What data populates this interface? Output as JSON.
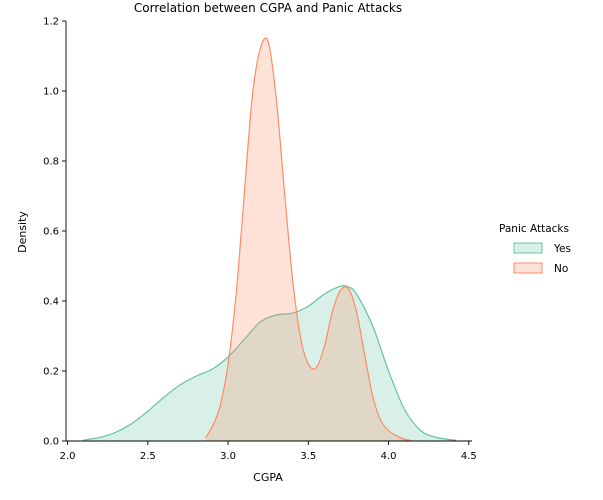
{
  "chart_data": {
    "type": "area",
    "title": "Correlation between CGPA and Panic Attacks",
    "xlabel": "CGPA",
    "ylabel": "Density",
    "xlim": [
      1.99,
      4.52
    ],
    "ylim": [
      0.0,
      1.2
    ],
    "xticks": [
      "2.0",
      "2.5",
      "3.0",
      "3.5",
      "4.0",
      "4.5"
    ],
    "yticks": [
      "0.0",
      "0.2",
      "0.4",
      "0.6",
      "0.8",
      "1.0",
      "1.2"
    ],
    "grid": false,
    "legend": {
      "title": "Panic Attacks",
      "position": "right"
    },
    "series": [
      {
        "name": "Yes",
        "color": "#66c2a5",
        "x": [
          2.1,
          2.2,
          2.3,
          2.4,
          2.5,
          2.6,
          2.7,
          2.8,
          2.9,
          3.0,
          3.1,
          3.2,
          3.3,
          3.4,
          3.5,
          3.6,
          3.7,
          3.75,
          3.8,
          3.9,
          4.0,
          4.1,
          4.2,
          4.3,
          4.42
        ],
        "y": [
          0.003,
          0.01,
          0.025,
          0.05,
          0.085,
          0.125,
          0.16,
          0.185,
          0.205,
          0.24,
          0.29,
          0.34,
          0.36,
          0.365,
          0.385,
          0.42,
          0.442,
          0.44,
          0.42,
          0.33,
          0.2,
          0.09,
          0.03,
          0.01,
          0.002
        ]
      },
      {
        "name": "No",
        "color": "#fc8d62",
        "x": [
          2.86,
          2.9,
          2.95,
          3.0,
          3.05,
          3.1,
          3.15,
          3.2,
          3.25,
          3.3,
          3.35,
          3.4,
          3.45,
          3.5,
          3.55,
          3.6,
          3.65,
          3.7,
          3.75,
          3.8,
          3.85,
          3.9,
          3.95,
          4.0,
          4.05,
          4.1,
          4.14
        ],
        "y": [
          0.01,
          0.04,
          0.1,
          0.22,
          0.42,
          0.7,
          0.98,
          1.12,
          1.14,
          0.98,
          0.72,
          0.47,
          0.3,
          0.22,
          0.21,
          0.27,
          0.37,
          0.43,
          0.435,
          0.37,
          0.25,
          0.13,
          0.06,
          0.03,
          0.015,
          0.005,
          0.002
        ]
      }
    ]
  }
}
